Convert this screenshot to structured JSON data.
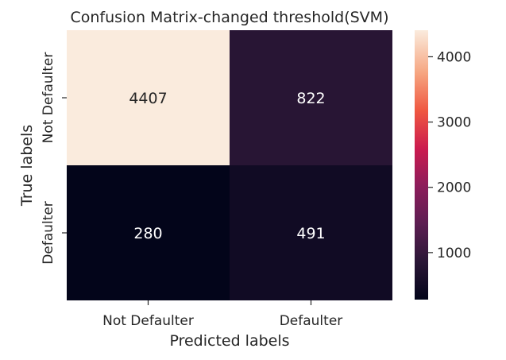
{
  "chart_data": {
    "type": "heatmap",
    "title": "Confusion Matrix-changed threshold(SVM)",
    "xlabel": "Predicted labels",
    "ylabel": "True labels",
    "x_categories": [
      "Not Defaulter",
      "Defaulter"
    ],
    "y_categories": [
      "Not Defaulter",
      "Defaulter"
    ],
    "values": [
      [
        4407,
        822
      ],
      [
        280,
        491
      ]
    ],
    "annotations": [
      "4407",
      "822",
      "280",
      "491"
    ],
    "colorbar": {
      "ticks": [
        1000,
        2000,
        3000,
        4000
      ],
      "tick_labels": [
        "1000",
        "2000",
        "3000",
        "4000"
      ],
      "vmin": 280,
      "vmax": 4407,
      "colormap": "rocket"
    }
  }
}
